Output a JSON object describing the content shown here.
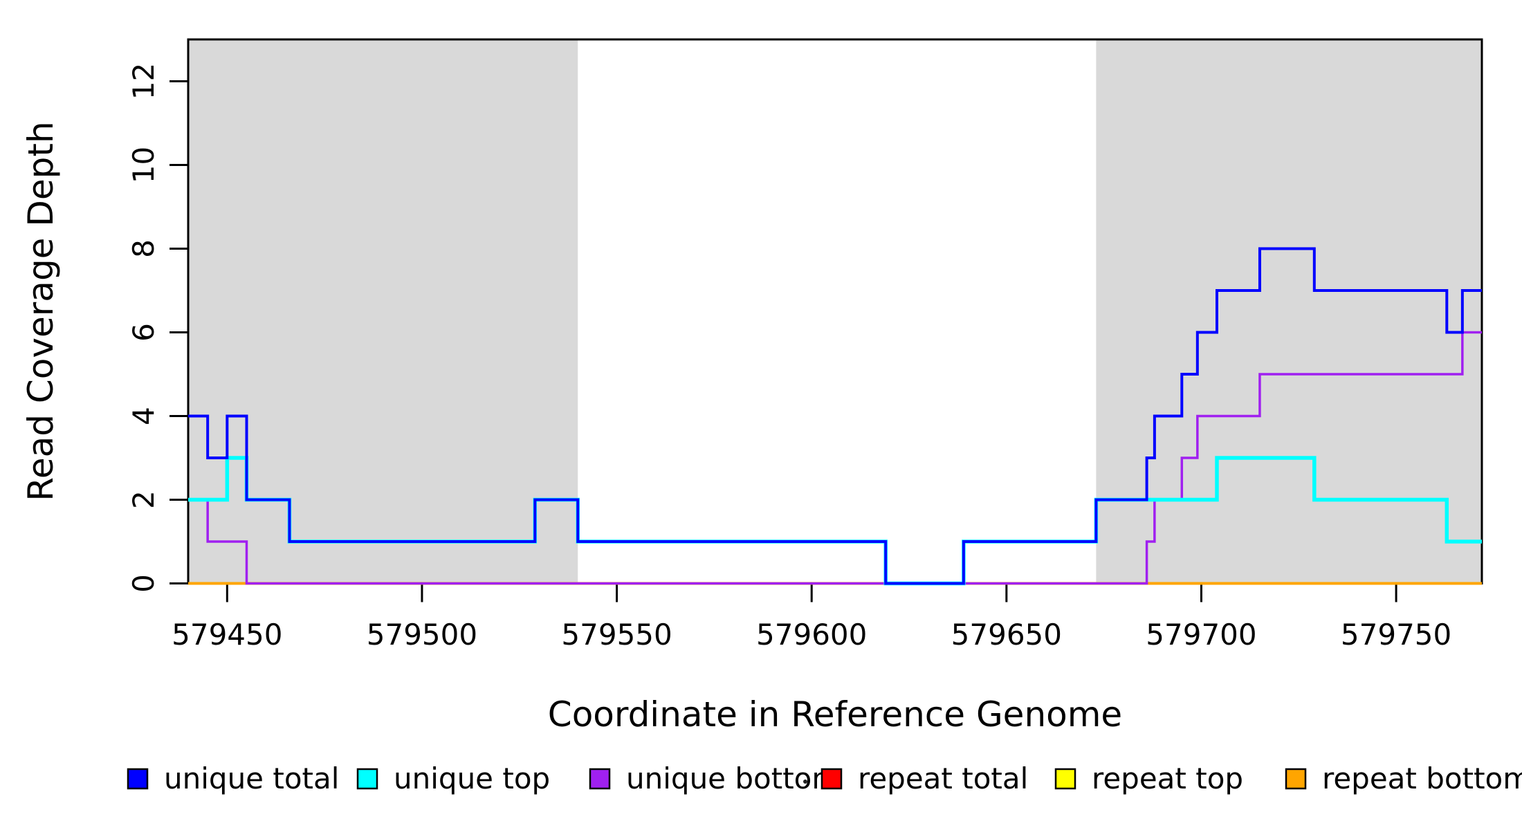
{
  "chart_data": {
    "type": "line",
    "step_mode": "after",
    "title": "",
    "xlabel": "Coordinate in Reference Genome",
    "ylabel": "Read Coverage Depth",
    "xlim": [
      579440,
      579772
    ],
    "ylim": [
      0,
      13
    ],
    "x_ticks": [
      579450,
      579500,
      579550,
      579600,
      579650,
      579700,
      579750
    ],
    "y_ticks": [
      0,
      2,
      4,
      6,
      8,
      10,
      12
    ],
    "grid": false,
    "background_shading": {
      "color": "#d9d9d9",
      "regions": [
        {
          "x_start": 579440,
          "x_end": 579540
        },
        {
          "x_start": 579673,
          "x_end": 579772
        }
      ]
    },
    "series": [
      {
        "name": "repeat total",
        "color": "#ff0000",
        "line_width": 3.5,
        "steps": [
          [
            579440,
            0
          ],
          [
            579772,
            0
          ]
        ]
      },
      {
        "name": "repeat top",
        "color": "#ffff00",
        "line_width": 3.5,
        "steps": [
          [
            579440,
            0
          ],
          [
            579772,
            0
          ]
        ]
      },
      {
        "name": "repeat bottom",
        "color": "#ffa500",
        "line_width": 4,
        "steps": [
          [
            579440,
            0
          ],
          [
            579772,
            0
          ]
        ]
      },
      {
        "name": "unique bottom",
        "color": "#a020f0",
        "line_width": 3.5,
        "steps": [
          [
            579440,
            2
          ],
          [
            579445,
            1
          ],
          [
            579455,
            0
          ],
          [
            579686,
            1
          ],
          [
            579688,
            2
          ],
          [
            579695,
            3
          ],
          [
            579699,
            4
          ],
          [
            579715,
            5
          ],
          [
            579767,
            6
          ],
          [
            579772,
            6
          ]
        ]
      },
      {
        "name": "unique top",
        "color": "#00ffff",
        "line_width": 5.5,
        "steps": [
          [
            579440,
            2
          ],
          [
            579450,
            3
          ],
          [
            579455,
            2
          ],
          [
            579466,
            1
          ],
          [
            579529,
            2
          ],
          [
            579540,
            1
          ],
          [
            579619,
            0
          ],
          [
            579639,
            1
          ],
          [
            579673,
            2
          ],
          [
            579704,
            3
          ],
          [
            579729,
            2
          ],
          [
            579763,
            1
          ],
          [
            579772,
            1
          ]
        ]
      },
      {
        "name": "unique total",
        "color": "#0000ff",
        "line_width": 4,
        "steps": [
          [
            579440,
            4
          ],
          [
            579445,
            3
          ],
          [
            579450,
            4
          ],
          [
            579455,
            2
          ],
          [
            579466,
            1
          ],
          [
            579529,
            2
          ],
          [
            579540,
            1
          ],
          [
            579619,
            0
          ],
          [
            579639,
            1
          ],
          [
            579673,
            2
          ],
          [
            579686,
            3
          ],
          [
            579688,
            4
          ],
          [
            579695,
            5
          ],
          [
            579699,
            6
          ],
          [
            579704,
            7
          ],
          [
            579715,
            8
          ],
          [
            579729,
            7
          ],
          [
            579763,
            6
          ],
          [
            579767,
            7
          ],
          [
            579772,
            7
          ]
        ]
      }
    ],
    "legend": {
      "position": "bottom",
      "items": [
        {
          "label": "unique total",
          "color": "#0000ff"
        },
        {
          "label": "unique top",
          "color": "#00ffff"
        },
        {
          "label": "unique bottom",
          "color": "#a020f0"
        },
        {
          "label": "repeat total",
          "color": "#ff0000"
        },
        {
          "label": "repeat top",
          "color": "#ffff00"
        },
        {
          "label": "repeat bottom",
          "color": "#ffa500"
        }
      ],
      "stray_dot_after_item_index": 2
    }
  }
}
